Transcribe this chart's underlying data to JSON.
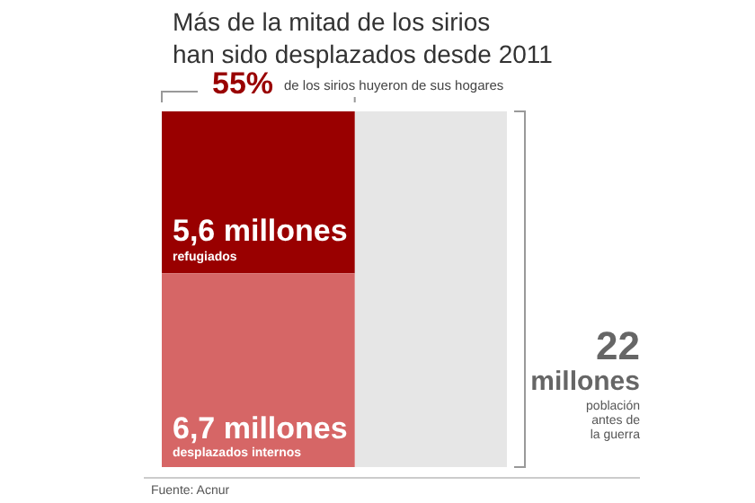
{
  "chart_data": {
    "type": "other",
    "title": "Más de la mitad de los sirios\nhan sido desplazados desde 2011",
    "categories": [
      "refugiados",
      "desplazados internos",
      "población antes de la guerra"
    ],
    "values": [
      5.6,
      6.7,
      22
    ],
    "value_labels": [
      "5,6 millones",
      "6,7 millones",
      "22 millones"
    ],
    "colors": [
      "#990000",
      "#d66666",
      "#e6e6e6"
    ],
    "annotations": [
      "55%",
      "de los sirios huyeron de sus hogares",
      "Fuente: Acnur"
    ]
  }
}
